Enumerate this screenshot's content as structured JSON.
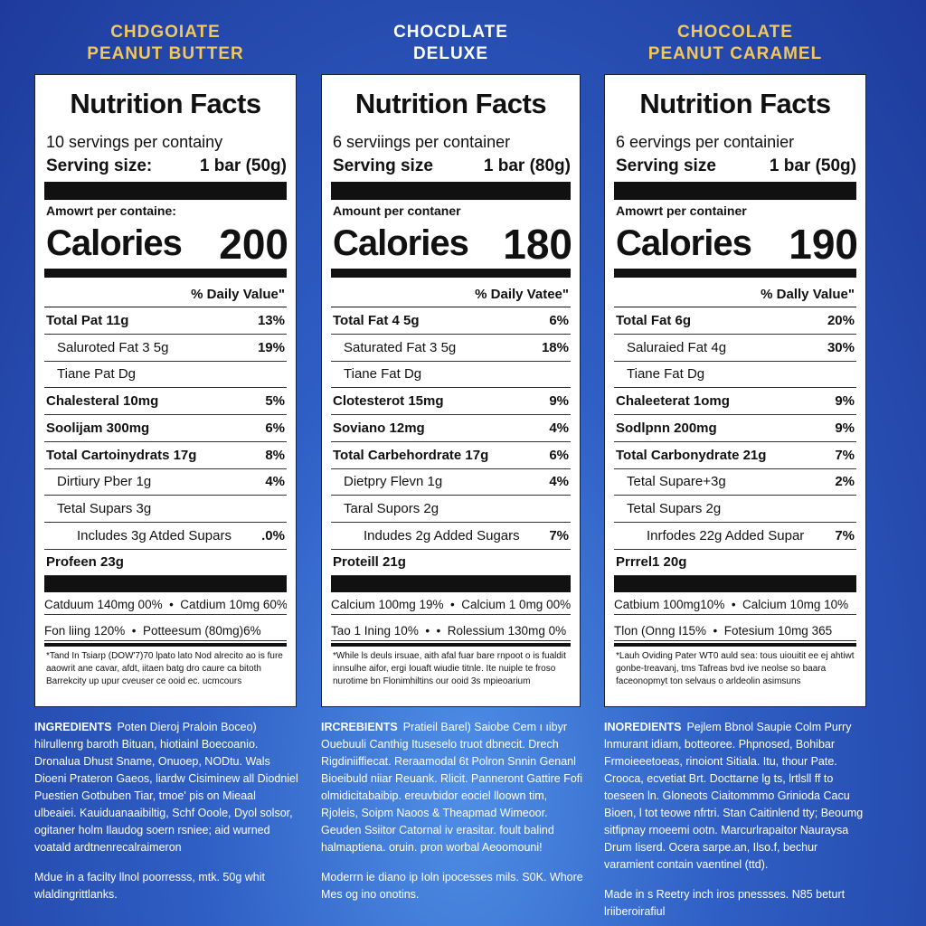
{
  "panels": [
    {
      "title": [
        "CHDGOIATE",
        "PEANUT BUTTER"
      ],
      "title_color": "#f2c75c",
      "heading": "Nutrition Facts",
      "servings": "10 servings per containy",
      "serving_label": "Serving size:",
      "serving_value": "1 bar (50g)",
      "amount": "Amowrt per containe:",
      "calories_label": "Calories",
      "calories": "200",
      "dv": "% Daily Value\"",
      "rows": [
        [
          "Total Pat 11g",
          "13%"
        ],
        [
          "Saluroted Fat 3 5g",
          "19%"
        ],
        [
          "Tiane Pat Dg",
          ""
        ],
        [
          "Chalesteral 10mg",
          "5%"
        ],
        [
          "Soolijam 300mg",
          "6%"
        ],
        [
          "Total Cartoinydrats 17g",
          "8%"
        ],
        [
          "Dirtiury Pber 1g",
          "4%"
        ],
        [
          "Tetal Supars 3g",
          ""
        ],
        [
          "Includes 3g Atded Supars",
          ".0%"
        ],
        [
          "Profeen 23g",
          ""
        ]
      ],
      "minerals": [
        "Catduum 140mg 00%  •  Catdium 10mg 60%",
        "Fon liing 120%  •  Potteesum (80mg)6%"
      ],
      "footnote": "*Tand In Tsiarp (DOW'7)70 lpato lato Nod alrecito ao is fure aaowrit ane cavar, afdt, iitaen batg dro caure ca bitoth Barrekcity up upur cveuser ce ooid ec. ucmcours",
      "ingredients_label": "INGREDIENTS",
      "ingredients": "Poten Dieroj Praloin Boceo) hilrullenrg baroth Bituan, hiotiainl Boecoanio. Dronalua Dhust Sname, Onuoep, NODtu. Wals Dioeni Prateron Gaeos, liardw Cisiminew all Diodniel Puestien Gotbuben Tiar, tmoe' pis on Mieaal ulbeaiei. Kauiduanaaibiltig, Schf Ooole, Dyol solsor, ogitaner holm Ilaudog soern rsniee; aid wurned voatald ardtnenrecalraimeron",
      "facility": "Mdue in a facilty llnol poorresss, mtk. 50g whit wlaldingrittlanks."
    },
    {
      "title": [
        "CHOCDLATE",
        "DELUXE"
      ],
      "title_color": "#ffffff",
      "heading": "Nutrition Facts",
      "servings": "6 serviings per container",
      "serving_label": "Serving size",
      "serving_value": "1 bar (80g)",
      "amount": "Amount per contaner",
      "calories_label": "Calories",
      "calories": "180",
      "dv": "% Daily Vatee\"",
      "rows": [
        [
          "Total Fat 4 5g",
          "6%"
        ],
        [
          "Saturated Fat 3 5g",
          "18%"
        ],
        [
          "Tiane Fat Dg",
          ""
        ],
        [
          "Clotesterot 15mg",
          "9%"
        ],
        [
          "Soviano 12mg",
          "4%"
        ],
        [
          "Total Carbehordrate 17g",
          "6%"
        ],
        [
          "Dietpry Flevn 1g",
          "4%"
        ],
        [
          "Taral Supors 2g",
          ""
        ],
        [
          "Indudes 2g Added Sugars",
          "7%"
        ],
        [
          "Proteill 21g",
          ""
        ]
      ],
      "minerals": [
        "Calcium 100mg 19%  •  Calcium 1 0mg 00%",
        "Tao 1 Ining 10%  •  •  Rolessium 130mg 0%"
      ],
      "footnote": "*While ls deuls irsuae, aith afal fuar bare rnpoot o is fualdit innsulhe aifor, ergi Iouaft wiudie titnle. Ite nuiple te froso nurotime bn Flonimhiltins our ooid 3s mpieoarium",
      "ingredients_label": "IRCREBIENTS",
      "ingredients": "Pratieil Barel) Saiobe Cem ı ıibyr Ouebuuli Canthig Ituseselo truot dbnecit. Drech Rigdiniiffiecat. Reraamodal 6t Polron Snnin Genanl Bioeibuld niiar Reuank. Rlicit. Panneront Gattire Fofi olmidicitabaibip. ereuvbidor eociel lloown tim, Rjoleis, Soipm Naoos & Theapmad Wimeoor. Geuden Ssiitor Catornal iv erasitar. foult balind halmaptiena. oruin. pron worbal Aeoomouni!",
      "facility": "Moderrn ie diano ip Ioln ipocesses mils. S0K. Whore Mes og ino onotins."
    },
    {
      "title": [
        "CHOCOLATE",
        "PEANUT CARAMEL"
      ],
      "title_color": "#f2c75c",
      "heading": "Nutrition Facts",
      "servings": "6 eervings per containier",
      "serving_label": "Serving size",
      "serving_value": "1 bar (50g)",
      "amount": "Amowrt per container",
      "calories_label": "Calories",
      "calories": "190",
      "dv": "% Dally Value\"",
      "rows": [
        [
          "Total Fat 6g",
          "20%"
        ],
        [
          "Saluraied Fat 4g",
          "30%"
        ],
        [
          "Tiane Fat Dg",
          ""
        ],
        [
          "Chaleeterat 1omg",
          "9%"
        ],
        [
          "Sodlpnn 200mg",
          "9%"
        ],
        [
          "Total Carbonydrate 21g",
          "7%"
        ],
        [
          "Tetal Supare+3g",
          "2%"
        ],
        [
          "Tetal Supars 2g",
          ""
        ],
        [
          "Inrfodes 22g Added Supar",
          "7%"
        ],
        [
          "Prrrel1 20g",
          ""
        ]
      ],
      "minerals": [
        "Catbium 100mg10%  •  Calcium 10mg 10%",
        "Tlon (Onng I15%  •  Fotesium 10mg 365"
      ],
      "footnote": "*Lauh Oviding Pater WT0 auld sea: tous uiouitit ee ej ahtiwt gonbe-treavanj, tms Tafreas bvd ive neolse so baara faceonopmyt ton selvaus o arldeolin asimsuns",
      "ingredients_label": "INOREDIENTS",
      "ingredients": "Pejlem Bbnol Saupie Colm Purry lnmurant idiam, botteoree. Phpnosed, Bohibar Frmoieeetoeas, rinoiont Sitiala. Itu, thour Pate. Crooca, ecvetiat Brt. Docttarne lg ts, lrtlsll ff to toeseen ln. Gloneots Ciaitommmo Grinioda Cacu Bioen, l tot teowe nfrtri. Stan Caitinlend tty; Beoumg sitfipnay rnoeemi ootn. Marcurlrapaitor Nauraysa Drum Iiserd. Ocera sarpe.an, Ilso.f, bechur varamient contain vaentinel (ttd).",
      "facility": "Made in s Reetry inch iros pnessses. N85 beturt lriiberoirafiul"
    }
  ]
}
